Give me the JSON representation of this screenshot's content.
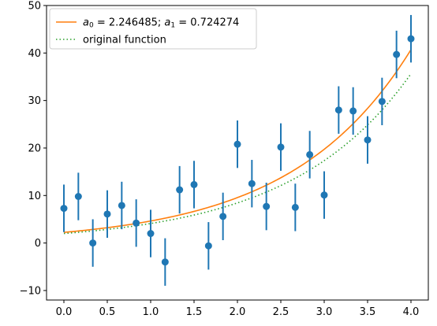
{
  "chart_data": {
    "type": "scatter",
    "title": "",
    "xlabel": "",
    "ylabel": "",
    "xlim": [
      -0.2,
      4.2
    ],
    "ylim": [
      -12,
      50
    ],
    "grid": false,
    "legend_placement": "top-left",
    "xticks": [
      0.0,
      0.5,
      1.0,
      1.5,
      2.0,
      2.5,
      3.0,
      3.5,
      4.0
    ],
    "xtick_labels": [
      "0.0",
      "0.5",
      "1.0",
      "1.5",
      "2.0",
      "2.5",
      "3.0",
      "3.5",
      "4.0"
    ],
    "yticks": [
      -10,
      0,
      10,
      20,
      30,
      40,
      50
    ],
    "ytick_labels": [
      "−10",
      "0",
      "10",
      "20",
      "30",
      "40",
      "50"
    ],
    "colors": {
      "data": "#1f77b4",
      "fit": "#ff7f0e",
      "original": "#2ca02c"
    },
    "legend": [
      {
        "key": "fit",
        "parts": [
          {
            "t": "a",
            "it": true
          },
          {
            "t": "0",
            "sub": true
          },
          {
            "t": " =  2.246485; "
          },
          {
            "t": "a",
            "it": true
          },
          {
            "t": "1",
            "sub": true
          },
          {
            "t": " =  0.724274"
          }
        ]
      },
      {
        "key": "original",
        "parts": [
          {
            "t": "original function"
          }
        ]
      }
    ],
    "fit_params": {
      "a0": 2.246485,
      "a1": 0.724274
    },
    "original_params": {
      "a0": 2.0,
      "a1": 0.72
    },
    "yerr": 5.0,
    "points": [
      {
        "x": 0.0,
        "y": 7.3
      },
      {
        "x": 0.1667,
        "y": 9.8
      },
      {
        "x": 0.3333,
        "y": 0.0
      },
      {
        "x": 0.5,
        "y": 6.1
      },
      {
        "x": 0.6667,
        "y": 7.9
      },
      {
        "x": 0.8333,
        "y": 4.2
      },
      {
        "x": 1.0,
        "y": 2.0
      },
      {
        "x": 1.1667,
        "y": -4.0
      },
      {
        "x": 1.3333,
        "y": 11.2
      },
      {
        "x": 1.5,
        "y": 12.3
      },
      {
        "x": 1.6667,
        "y": -0.6
      },
      {
        "x": 1.8333,
        "y": 5.6
      },
      {
        "x": 2.0,
        "y": 20.8
      },
      {
        "x": 2.1667,
        "y": 12.5
      },
      {
        "x": 2.3333,
        "y": 7.7
      },
      {
        "x": 2.5,
        "y": 20.2
      },
      {
        "x": 2.6667,
        "y": 7.5
      },
      {
        "x": 2.8333,
        "y": 18.6
      },
      {
        "x": 3.0,
        "y": 10.1
      },
      {
        "x": 3.1667,
        "y": 28.0
      },
      {
        "x": 3.3333,
        "y": 27.8
      },
      {
        "x": 3.5,
        "y": 21.7
      },
      {
        "x": 3.6667,
        "y": 29.8
      },
      {
        "x": 3.8333,
        "y": 39.7
      },
      {
        "x": 4.0,
        "y": 43.0
      }
    ]
  }
}
